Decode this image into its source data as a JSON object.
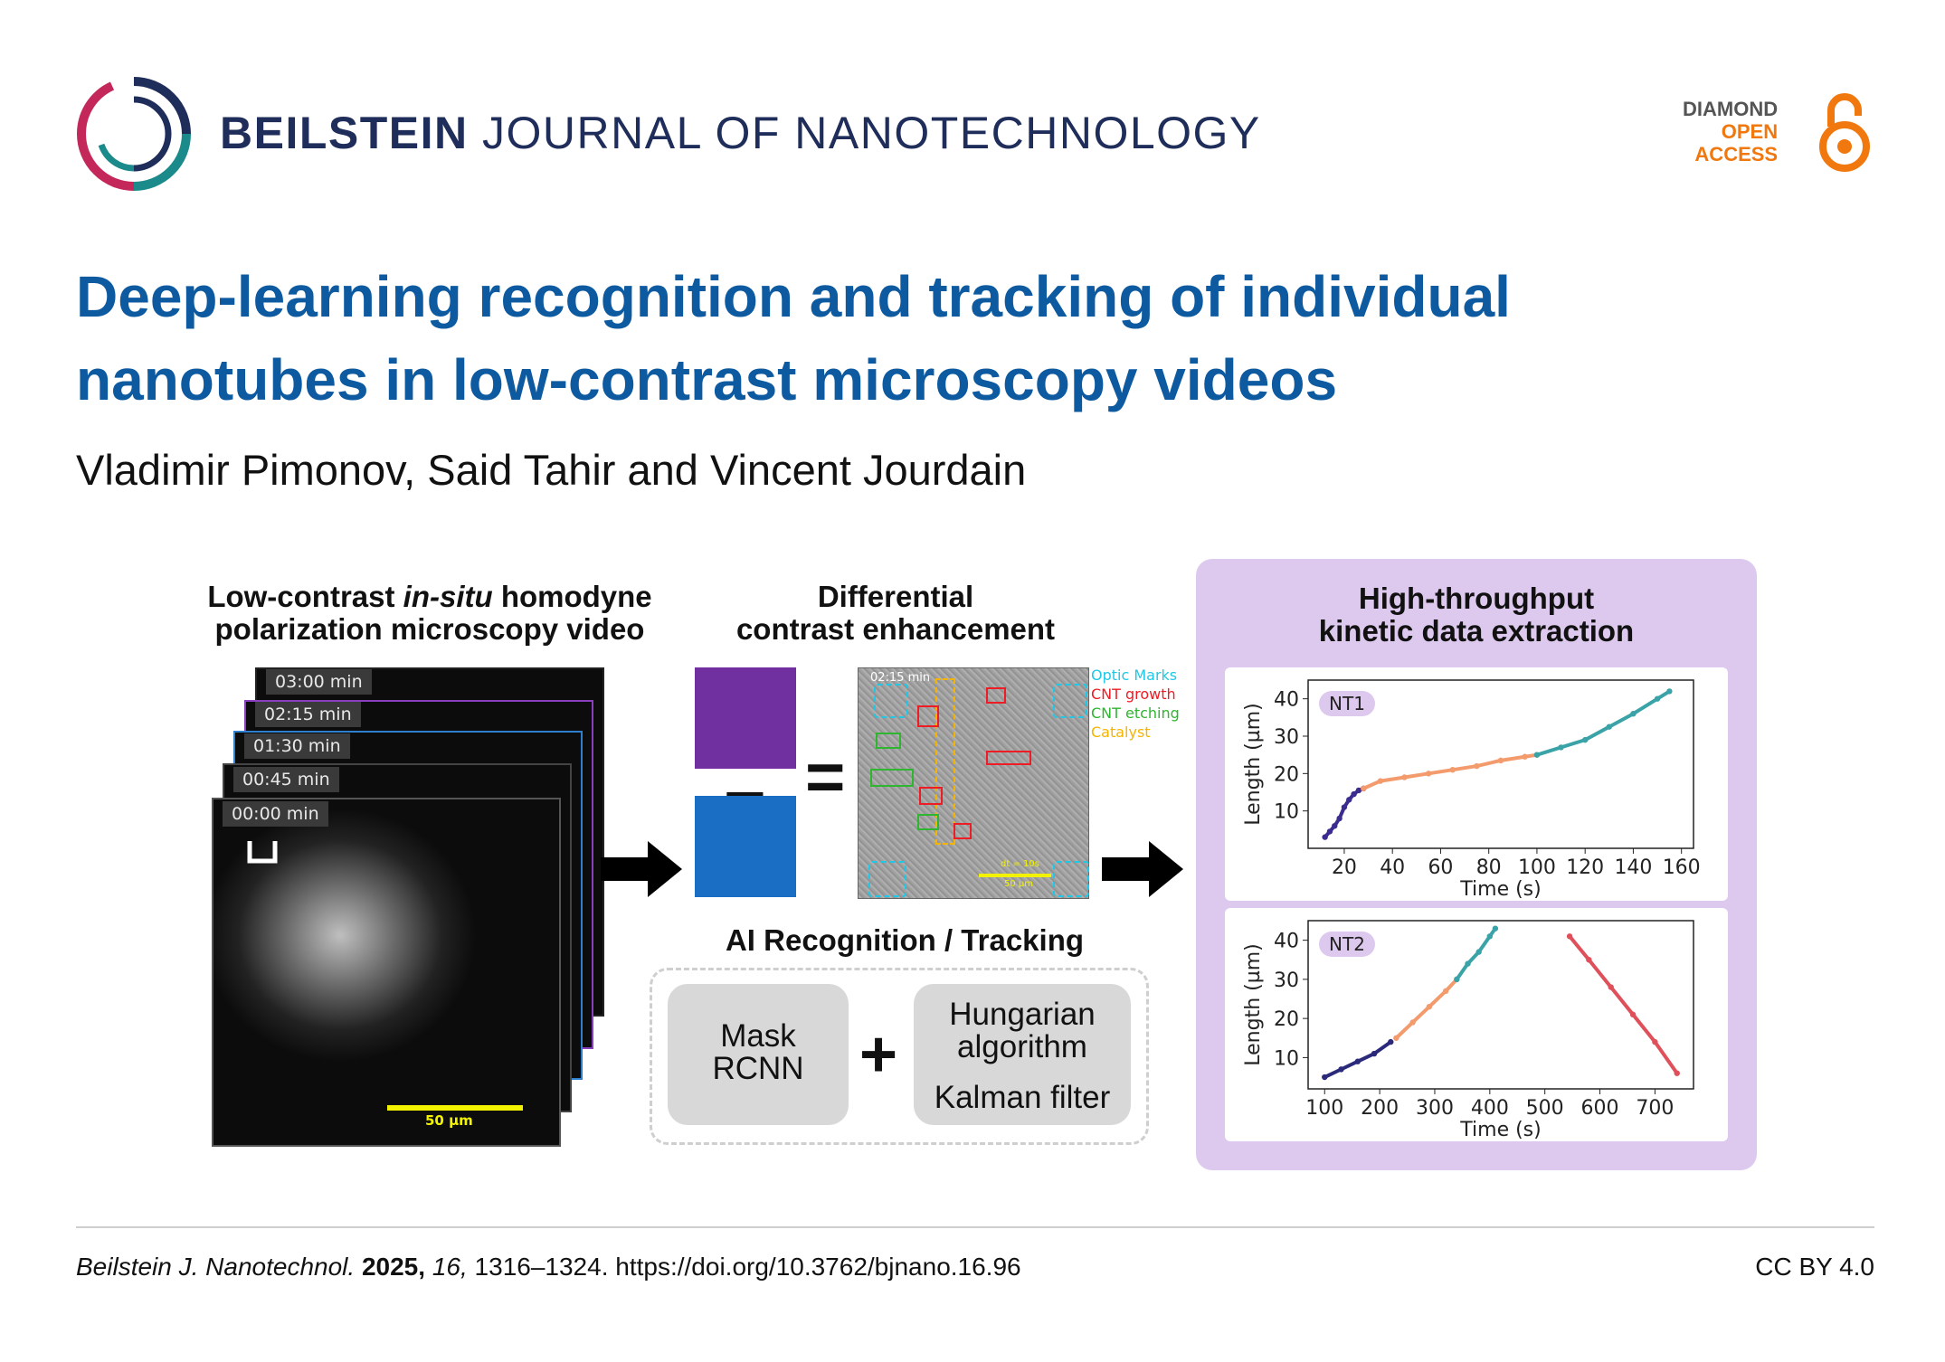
{
  "journal": {
    "name_bold": "BEILSTEIN",
    "name_rest": " JOURNAL OF NANOTECHNOLOGY"
  },
  "open_access": {
    "line1": "DIAMOND",
    "line2": "OPEN",
    "line3": "ACCESS"
  },
  "title": "Deep-learning recognition and tracking of individual nanotubes in low-contrast microscopy videos",
  "authors": "Vladimir Pimonov, Said Tahir and Vincent Jourdain",
  "figure": {
    "left_header_line1_a": "Low-contrast ",
    "left_header_line1_b": "in-situ",
    "left_header_line1_c": " homodyne",
    "left_header_line2": "polarization microscopy video",
    "frame_times": [
      "03:00 min",
      "02:15 min",
      "01:30 min",
      "00:45 min",
      "00:00 min"
    ],
    "scale_bar": "50 µm",
    "mid_header_line1": "Differential",
    "mid_header_line2": "contrast enhancement",
    "diff_time": "02:15 min",
    "diff_scale_top": "dt = 10s",
    "diff_scale_bottom": "50 µm",
    "minus": "−",
    "equals": "=",
    "legend": {
      "items": [
        {
          "label": "Optic Marks",
          "color": "#1ec8e6"
        },
        {
          "label": "CNT growth",
          "color": "#ee1c24"
        },
        {
          "label": "CNT etching",
          "color": "#2fb52f"
        },
        {
          "label": "Catalyst",
          "color": "#f5b400"
        }
      ]
    },
    "ai_header": "AI Recognition / Tracking",
    "mask_line1": "Mask",
    "mask_line2": "RCNN",
    "plus": "+",
    "hungarian_line1": "Hungarian",
    "hungarian_line2": "algorithm",
    "kalman": "Kalman filter",
    "right_header_line1": "High-throughput",
    "right_header_line2": "kinetic data extraction"
  },
  "chart_data": [
    {
      "type": "line",
      "badge": "NT1",
      "xlabel": "Time (s)",
      "ylabel": "Length (µm)",
      "xticks": [
        20,
        40,
        60,
        80,
        100,
        120,
        140,
        160
      ],
      "yticks": [
        10,
        20,
        30,
        40
      ],
      "xlim": [
        5,
        165
      ],
      "ylim": [
        0,
        45
      ],
      "series": [
        {
          "color": "#3b2d8f",
          "x": [
            12,
            14,
            16,
            18,
            20,
            22,
            24,
            26,
            28
          ],
          "y": [
            3,
            4.5,
            6,
            8,
            11,
            13,
            14.5,
            15.5,
            16
          ]
        },
        {
          "color": "#f39b6d",
          "x": [
            28,
            35,
            45,
            55,
            65,
            75,
            85,
            95,
            100
          ],
          "y": [
            16,
            18,
            19,
            20,
            21,
            22,
            23.5,
            24.5,
            25
          ]
        },
        {
          "color": "#3aa3a8",
          "x": [
            100,
            110,
            120,
            130,
            140,
            150,
            155
          ],
          "y": [
            25,
            27,
            29,
            32.5,
            36,
            40,
            42
          ]
        }
      ]
    },
    {
      "type": "scatter",
      "badge": "NT2",
      "xlabel": "Time (s)",
      "ylabel": "Length (µm)",
      "xticks": [
        100,
        200,
        300,
        400,
        500,
        600,
        700
      ],
      "yticks": [
        10,
        20,
        30,
        40
      ],
      "xlim": [
        70,
        770
      ],
      "ylim": [
        2,
        45
      ],
      "series": [
        {
          "color": "#2b2a7a",
          "x": [
            100,
            130,
            160,
            190,
            220
          ],
          "y": [
            5,
            7,
            9,
            11,
            14
          ]
        },
        {
          "color": "#f39b6d",
          "x": [
            230,
            260,
            290,
            320,
            340
          ],
          "y": [
            15,
            19,
            23,
            27,
            30
          ]
        },
        {
          "color": "#3aa3a8",
          "x": [
            340,
            360,
            380,
            400,
            410
          ],
          "y": [
            30,
            34,
            37,
            41,
            43
          ]
        },
        {
          "color": "#e0505a",
          "x": [
            545,
            580,
            620,
            660,
            700,
            740
          ],
          "y": [
            41,
            35,
            28,
            21,
            14,
            6
          ]
        }
      ]
    }
  ],
  "footer": {
    "journal_abbrev": "Beilstein J. Nanotechnol.",
    "year": "2025,",
    "volume": "16,",
    "pages_doi": " 1316–1324. https://doi.org/10.3762/bjnano.16.96",
    "license": "CC BY 4.0"
  },
  "colors": {
    "title_blue": "#0d5aa0",
    "journal_navy": "#1f2d5a",
    "oa_orange": "#f0780f",
    "panel_purple": "#ddc9ee"
  }
}
